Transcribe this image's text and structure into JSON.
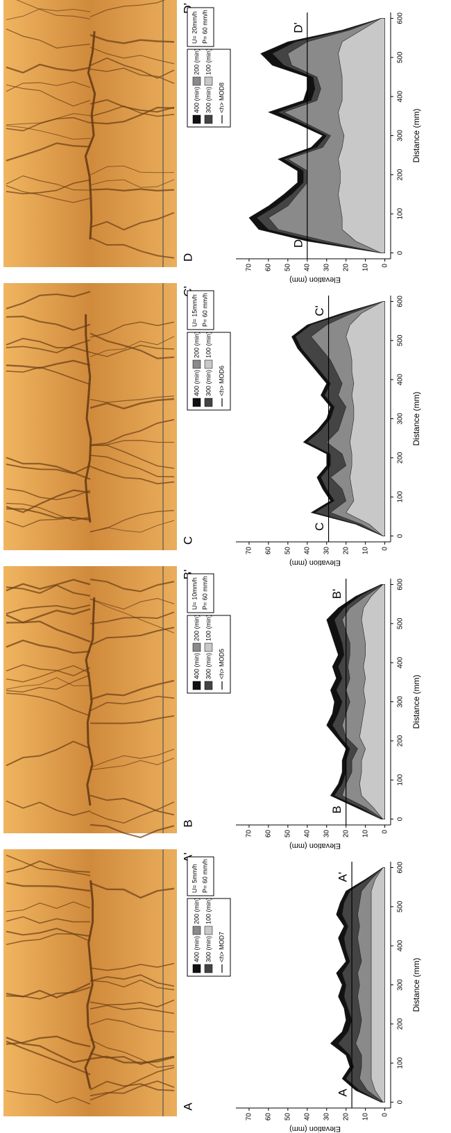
{
  "chart_data": [
    {
      "type": "area",
      "section_labels": [
        "A",
        "A'"
      ],
      "params": [
        "U= 5mm/h",
        "P= 60 mm/h"
      ],
      "x_label": "Distance (mm)",
      "y_label": "Elevation (mm)",
      "xlim": [
        -15,
        615
      ],
      "xticks": [
        0,
        100,
        200,
        300,
        400,
        500,
        600
      ],
      "ylim": [
        -3,
        75
      ],
      "yticks": [
        0,
        10,
        20,
        30,
        40,
        50,
        60,
        70
      ],
      "x": [
        0,
        30,
        60,
        90,
        120,
        150,
        180,
        210,
        240,
        270,
        300,
        330,
        360,
        390,
        420,
        450,
        480,
        510,
        540,
        570,
        600
      ],
      "series": [
        {
          "name": "400 (min)",
          "color": "#111111",
          "values": [
            2,
            15,
            22,
            18,
            20,
            28,
            22,
            20,
            21,
            24,
            22,
            25,
            20,
            22,
            24,
            21,
            25,
            23,
            20,
            10,
            1
          ]
        },
        {
          "name": "300 (min)",
          "color": "#444444",
          "values": [
            2,
            13,
            20,
            16,
            18,
            24,
            19,
            17,
            19,
            21,
            20,
            22,
            18,
            20,
            21,
            19,
            22,
            21,
            18,
            9,
            1
          ]
        },
        {
          "name": "200 (min)",
          "color": "#8a8a8a",
          "values": [
            1,
            9,
            13,
            12,
            12,
            15,
            13,
            12,
            13,
            14,
            13,
            14,
            12,
            13,
            14,
            13,
            14,
            13,
            12,
            7,
            1
          ]
        },
        {
          "name": "100 (min)",
          "color": "#c8c8c8",
          "values": [
            1,
            5,
            7,
            7,
            7,
            7,
            7,
            7,
            7,
            7,
            7,
            7,
            7,
            7,
            7,
            7,
            7,
            7,
            7,
            5,
            1
          ]
        }
      ],
      "reference_line": {
        "name": "<h> MOD7",
        "value": 17,
        "color": "#000000"
      }
    },
    {
      "type": "area",
      "section_labels": [
        "B",
        "B'"
      ],
      "params": [
        "U= 10mm/h",
        "P= 60 mm/h"
      ],
      "x_label": "Distance (mm)",
      "y_label": "Elevation (mm)",
      "xlim": [
        -15,
        615
      ],
      "xticks": [
        0,
        100,
        200,
        300,
        400,
        500,
        600
      ],
      "ylim": [
        -3,
        75
      ],
      "yticks": [
        0,
        10,
        20,
        30,
        40,
        50,
        60,
        70
      ],
      "x": [
        0,
        30,
        60,
        90,
        120,
        150,
        180,
        210,
        240,
        270,
        300,
        330,
        360,
        390,
        420,
        450,
        480,
        510,
        540,
        570,
        600
      ],
      "series": [
        {
          "name": "400 (min)",
          "color": "#111111",
          "values": [
            2,
            15,
            28,
            24,
            22,
            22,
            20,
            25,
            30,
            27,
            26,
            28,
            25,
            27,
            24,
            26,
            28,
            30,
            24,
            15,
            2
          ]
        },
        {
          "name": "300 (min)",
          "color": "#444444",
          "values": [
            2,
            13,
            26,
            22,
            20,
            20,
            18,
            23,
            27,
            24,
            22,
            25,
            22,
            24,
            21,
            22,
            24,
            26,
            21,
            13,
            2
          ]
        },
        {
          "name": "200 (min)",
          "color": "#8a8a8a",
          "values": [
            1,
            10,
            22,
            20,
            17,
            17,
            14,
            20,
            22,
            20,
            18,
            20,
            18,
            19,
            18,
            18,
            20,
            22,
            18,
            10,
            1
          ]
        },
        {
          "name": "100 (min)",
          "color": "#c8c8c8",
          "values": [
            1,
            6,
            12,
            13,
            12,
            12,
            10,
            13,
            12,
            11,
            10,
            11,
            10,
            11,
            10,
            10,
            11,
            12,
            11,
            7,
            1
          ]
        }
      ],
      "reference_line": {
        "name": "<h> MOD5",
        "value": 20,
        "color": "#000000"
      }
    },
    {
      "type": "area",
      "section_labels": [
        "C",
        "C'"
      ],
      "params": [
        "U= 15mm/h",
        "P= 60 mm/h"
      ],
      "x_label": "Distance (mm)",
      "y_label": "Elevation (mm)",
      "xlim": [
        -15,
        615
      ],
      "xticks": [
        0,
        100,
        200,
        300,
        400,
        500,
        600
      ],
      "ylim": [
        -3,
        75
      ],
      "yticks": [
        0,
        10,
        20,
        30,
        40,
        50,
        60,
        70
      ],
      "x": [
        0,
        30,
        60,
        90,
        120,
        150,
        180,
        210,
        240,
        270,
        300,
        330,
        360,
        390,
        420,
        450,
        480,
        510,
        540,
        570,
        600
      ],
      "series": [
        {
          "name": "400 (min)",
          "color": "#111111",
          "values": [
            1,
            15,
            38,
            28,
            32,
            35,
            30,
            30,
            42,
            35,
            30,
            28,
            33,
            30,
            35,
            40,
            45,
            48,
            40,
            22,
            1
          ]
        },
        {
          "name": "300 (min)",
          "color": "#444444",
          "values": [
            1,
            14,
            36,
            26,
            30,
            33,
            28,
            28,
            40,
            33,
            28,
            26,
            31,
            28,
            33,
            38,
            43,
            46,
            38,
            20,
            1
          ]
        },
        {
          "name": "200 (min)",
          "color": "#8a8a8a",
          "values": [
            1,
            12,
            28,
            20,
            22,
            28,
            20,
            22,
            30,
            24,
            22,
            20,
            24,
            22,
            25,
            28,
            33,
            38,
            30,
            17,
            1
          ]
        },
        {
          "name": "100 (min)",
          "color": "#c8c8c8",
          "values": [
            1,
            8,
            20,
            16,
            17,
            18,
            17,
            17,
            18,
            17,
            16,
            16,
            17,
            16,
            17,
            17,
            18,
            20,
            18,
            12,
            1
          ]
        }
      ],
      "reference_line": {
        "name": "<h> MOD6",
        "value": 29,
        "color": "#000000"
      }
    },
    {
      "type": "area",
      "section_labels": [
        "D",
        "D'"
      ],
      "params": [
        "U= 20mm/h",
        "P= 60 mm/h"
      ],
      "x_label": "Distance (mm)",
      "y_label": "Elevation (mm)",
      "xlim": [
        -15,
        615
      ],
      "xticks": [
        0,
        100,
        200,
        300,
        400,
        500,
        600
      ],
      "ylim": [
        -3,
        75
      ],
      "yticks": [
        0,
        10,
        20,
        30,
        40,
        50,
        60,
        70
      ],
      "x": [
        0,
        30,
        60,
        90,
        120,
        150,
        180,
        210,
        240,
        270,
        300,
        330,
        360,
        390,
        420,
        450,
        480,
        510,
        540,
        570,
        600
      ],
      "series": [
        {
          "name": "400 (min)",
          "color": "#111111",
          "values": [
            2,
            40,
            65,
            70,
            60,
            52,
            45,
            45,
            55,
            38,
            32,
            45,
            60,
            42,
            40,
            40,
            58,
            64,
            50,
            22,
            2
          ]
        },
        {
          "name": "300 (min)",
          "color": "#444444",
          "values": [
            2,
            35,
            60,
            66,
            56,
            48,
            42,
            42,
            52,
            35,
            30,
            42,
            55,
            38,
            36,
            37,
            52,
            58,
            46,
            20,
            2
          ]
        },
        {
          "name": "200 (min)",
          "color": "#8a8a8a",
          "values": [
            2,
            30,
            55,
            60,
            50,
            45,
            40,
            40,
            50,
            32,
            28,
            40,
            52,
            35,
            33,
            35,
            48,
            50,
            40,
            18,
            2
          ]
        },
        {
          "name": "100 (min)",
          "color": "#c8c8c8",
          "values": [
            2,
            15,
            22,
            22,
            23,
            24,
            23,
            23,
            24,
            22,
            21,
            23,
            24,
            22,
            22,
            22,
            23,
            24,
            22,
            12,
            2
          ]
        }
      ],
      "reference_line": {
        "name": "<h> MOD8",
        "value": 40,
        "color": "#000000"
      }
    }
  ]
}
